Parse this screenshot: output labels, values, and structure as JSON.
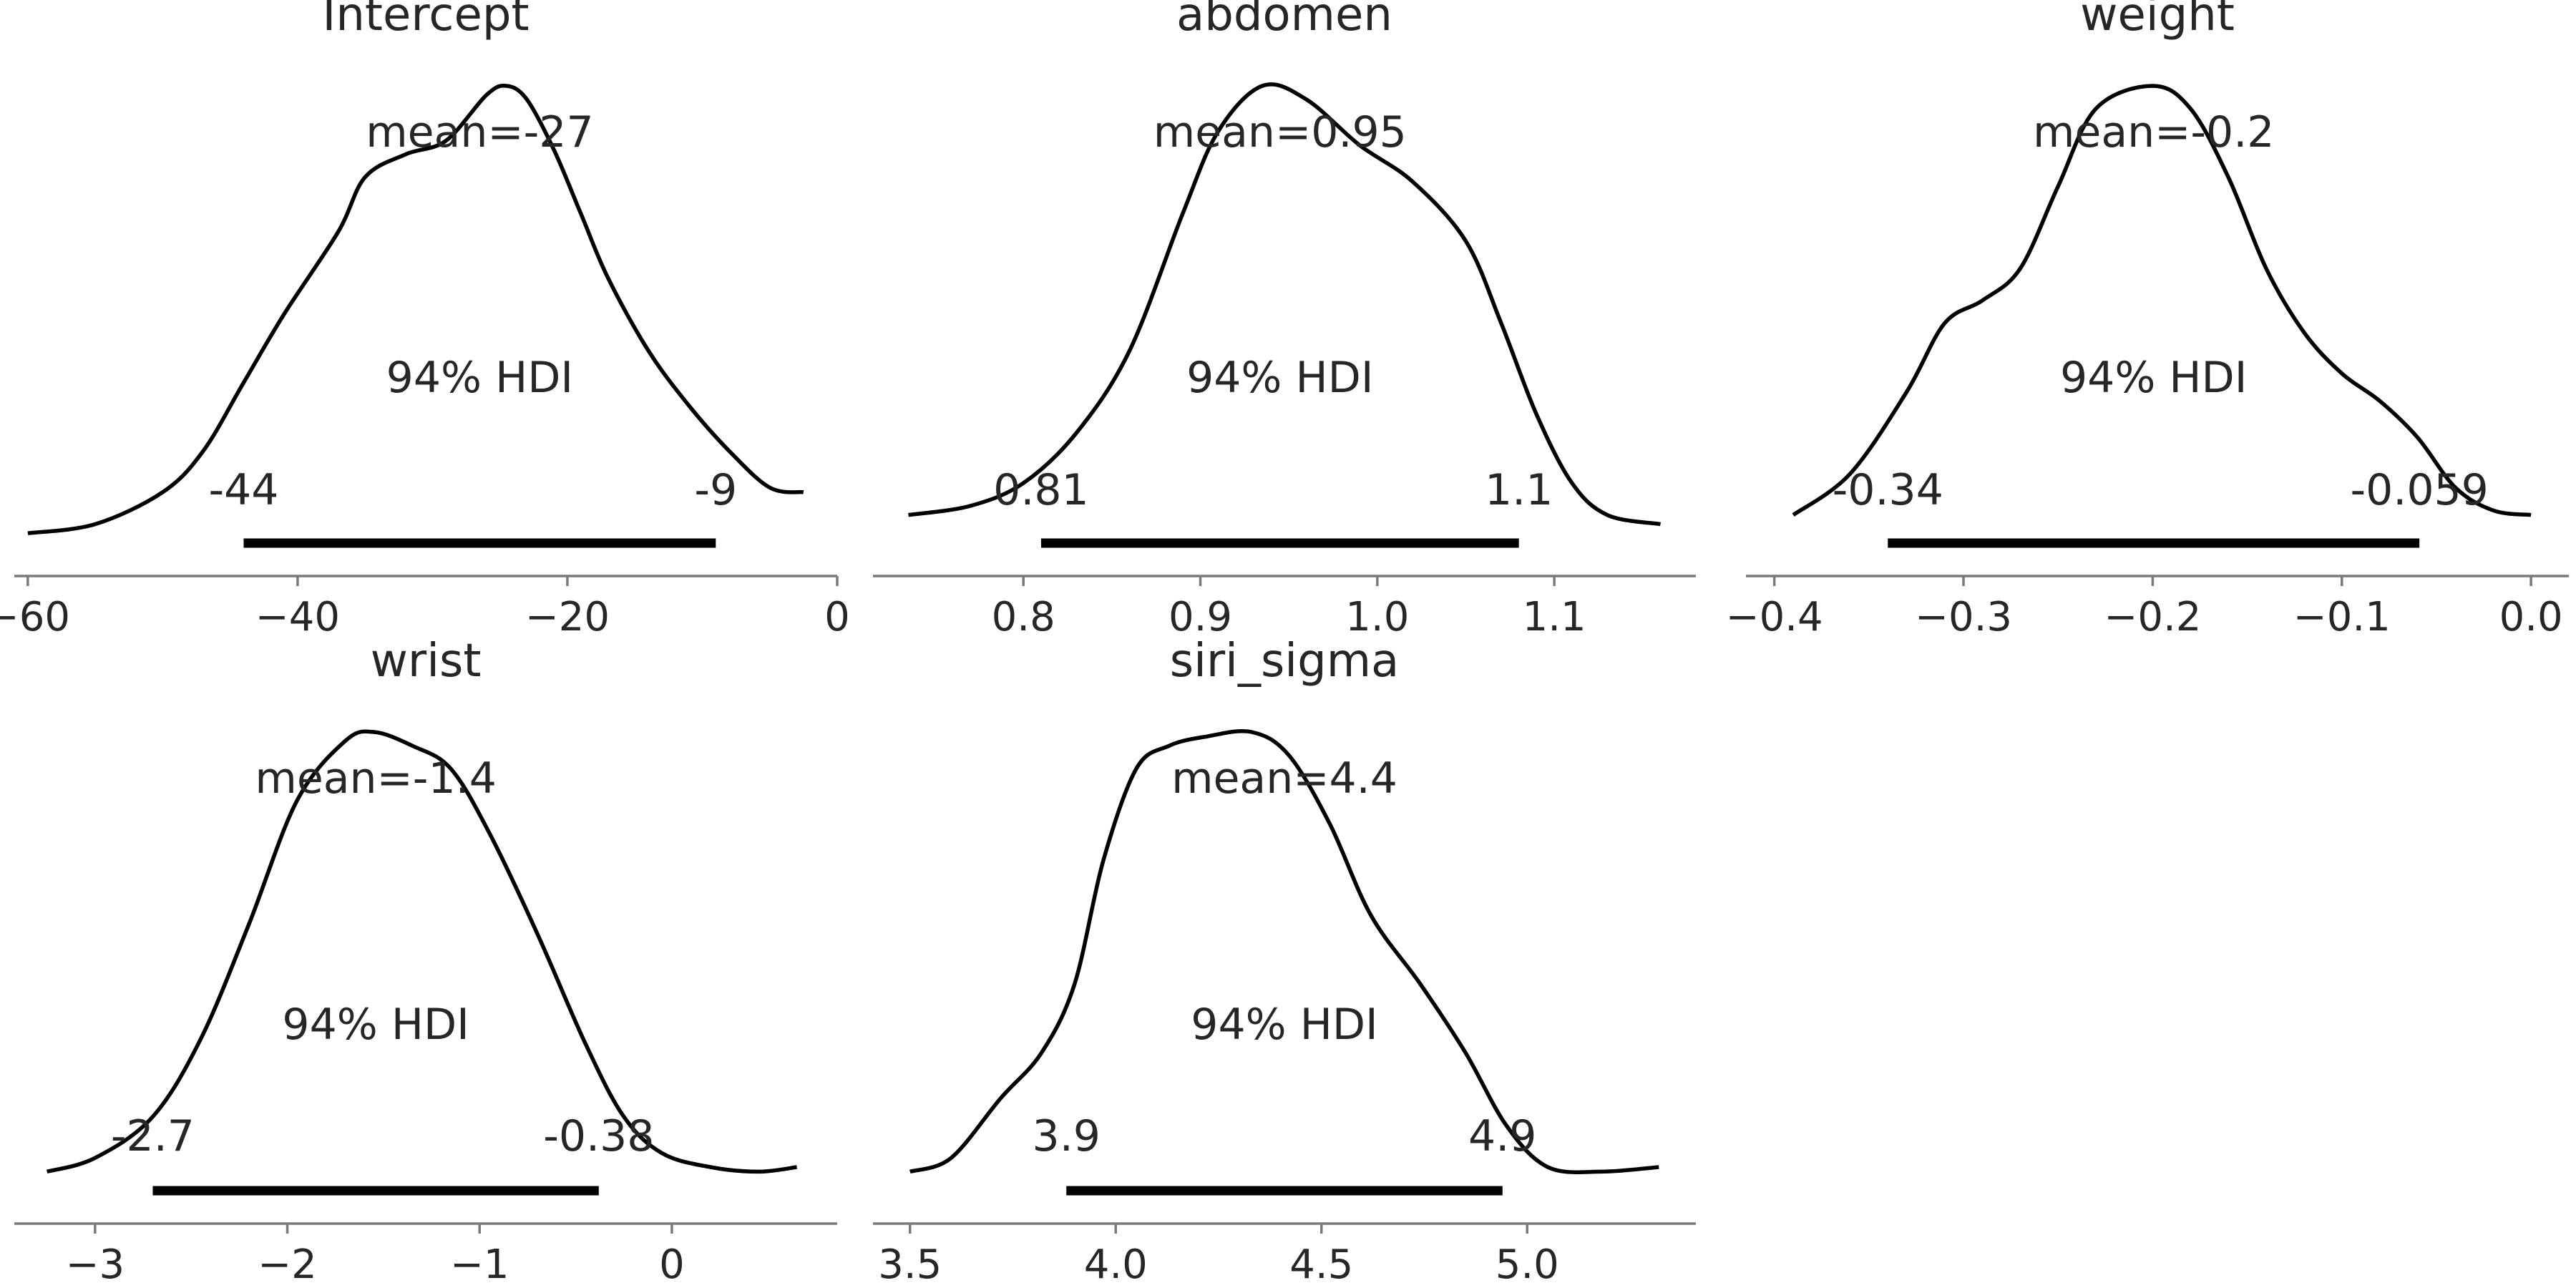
{
  "chart_data": [
    {
      "type": "area",
      "title": "Intercept",
      "xlim": [
        -61,
        0
      ],
      "xticks": [
        -60,
        -40,
        -20,
        0
      ],
      "xtick_labels": [
        "−60",
        "−40",
        "−20",
        "0"
      ],
      "mean_label": "mean=-27",
      "hdi_label": "94% HDI",
      "hdi_prob": 0.94,
      "hdi": [
        -44,
        -9
      ],
      "hdi_low_label": "-44",
      "hdi_high_label": "-9",
      "density": {
        "x": [
          -60,
          -55,
          -50,
          -47,
          -44,
          -41,
          -37,
          -35,
          -32,
          -29,
          -26,
          -24.5,
          -23,
          -21,
          -19,
          -17,
          -14,
          -11,
          -8,
          -5,
          -2.5
        ],
        "y": [
          0.02,
          0.04,
          0.11,
          0.2,
          0.35,
          0.5,
          0.68,
          0.8,
          0.85,
          0.88,
          0.98,
          1.0,
          0.97,
          0.86,
          0.72,
          0.58,
          0.42,
          0.3,
          0.2,
          0.12,
          0.11
        ]
      }
    },
    {
      "type": "area",
      "title": "abdomen",
      "xlim": [
        0.715,
        1.18
      ],
      "xticks": [
        0.8,
        0.9,
        1.0,
        1.1
      ],
      "xtick_labels": [
        "0.8",
        "0.9",
        "1.0",
        "1.1"
      ],
      "mean_label": "mean=0.95",
      "hdi_label": "94% HDI",
      "hdi_prob": 0.94,
      "hdi": [
        0.81,
        1.08
      ],
      "hdi_low_label": "0.81",
      "hdi_high_label": "1.1",
      "density": {
        "x": [
          0.735,
          0.77,
          0.8,
          0.83,
          0.86,
          0.89,
          0.91,
          0.935,
          0.96,
          0.99,
          1.02,
          1.05,
          1.07,
          1.09,
          1.11,
          1.13,
          1.16
        ],
        "y": [
          0.06,
          0.08,
          0.13,
          0.24,
          0.42,
          0.72,
          0.9,
          1.0,
          0.97,
          0.87,
          0.79,
          0.66,
          0.48,
          0.28,
          0.13,
          0.06,
          0.04
        ]
      }
    },
    {
      "type": "area",
      "title": "weight",
      "xlim": [
        -0.415,
        0.02
      ],
      "xticks": [
        -0.4,
        -0.3,
        -0.2,
        -0.1,
        0.0
      ],
      "xtick_labels": [
        "−0.4",
        "−0.3",
        "−0.2",
        "−0.1",
        "0.0"
      ],
      "mean_label": "mean=-0.2",
      "hdi_label": "94% HDI",
      "hdi_prob": 0.94,
      "hdi": [
        -0.34,
        -0.059
      ],
      "hdi_low_label": "-0.34",
      "hdi_high_label": "-0.059",
      "density": {
        "x": [
          -0.39,
          -0.36,
          -0.33,
          -0.31,
          -0.29,
          -0.27,
          -0.25,
          -0.23,
          -0.2,
          -0.18,
          -0.16,
          -0.14,
          -0.12,
          -0.1,
          -0.08,
          -0.06,
          -0.04,
          -0.02,
          0.0
        ],
        "y": [
          0.06,
          0.15,
          0.33,
          0.48,
          0.53,
          0.6,
          0.78,
          0.95,
          1.0,
          0.95,
          0.8,
          0.6,
          0.46,
          0.37,
          0.31,
          0.23,
          0.12,
          0.07,
          0.06
        ]
      }
    },
    {
      "type": "area",
      "title": "wrist",
      "xlim": [
        -3.42,
        0.86
      ],
      "xticks": [
        -3,
        -2,
        -1,
        0
      ],
      "xtick_labels": [
        "−3",
        "−2",
        "−1",
        "0"
      ],
      "mean_label": "mean=-1.4",
      "hdi_label": "94% HDI",
      "hdi_prob": 0.94,
      "hdi": [
        -2.7,
        -0.38
      ],
      "hdi_low_label": "-2.7",
      "hdi_high_label": "-0.38",
      "density": {
        "x": [
          -3.25,
          -3.0,
          -2.7,
          -2.45,
          -2.2,
          -1.95,
          -1.7,
          -1.55,
          -1.35,
          -1.15,
          -0.95,
          -0.7,
          -0.45,
          -0.25,
          -0.05,
          0.2,
          0.45,
          0.65
        ],
        "y": [
          0.04,
          0.07,
          0.16,
          0.33,
          0.58,
          0.85,
          0.98,
          1.0,
          0.97,
          0.92,
          0.78,
          0.56,
          0.32,
          0.16,
          0.08,
          0.05,
          0.04,
          0.05
        ]
      }
    },
    {
      "type": "area",
      "title": "siri_sigma",
      "xlim": [
        3.41,
        5.41
      ],
      "xticks": [
        3.5,
        4.0,
        4.5,
        5.0
      ],
      "xtick_labels": [
        "3.5",
        "4.0",
        "4.5",
        "5.0"
      ],
      "mean_label": "mean=4.4",
      "hdi_label": "94% HDI",
      "hdi_prob": 0.94,
      "hdi": [
        3.88,
        4.94
      ],
      "hdi_low_label": "3.9",
      "hdi_high_label": "4.9",
      "density": {
        "x": [
          3.5,
          3.6,
          3.72,
          3.82,
          3.9,
          3.97,
          4.05,
          4.13,
          4.22,
          4.33,
          4.42,
          4.52,
          4.62,
          4.74,
          4.85,
          4.95,
          5.05,
          5.18,
          5.32
        ],
        "y": [
          0.04,
          0.07,
          0.2,
          0.3,
          0.45,
          0.72,
          0.92,
          0.97,
          0.99,
          1.0,
          0.95,
          0.8,
          0.6,
          0.45,
          0.3,
          0.14,
          0.05,
          0.04,
          0.05
        ]
      }
    }
  ]
}
